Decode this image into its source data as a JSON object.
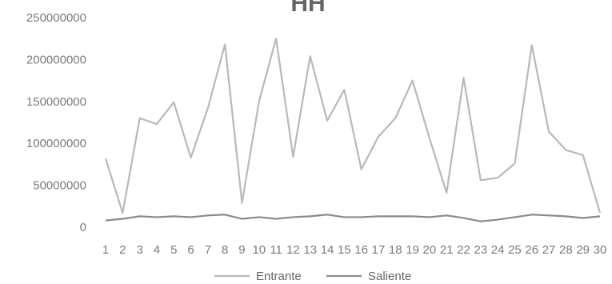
{
  "chart_data": {
    "type": "line",
    "title": "HH",
    "xlabel": "",
    "ylabel": "",
    "categories": [
      "1",
      "2",
      "3",
      "4",
      "5",
      "6",
      "7",
      "8",
      "9",
      "10",
      "11",
      "12",
      "13",
      "14",
      "15",
      "16",
      "17",
      "18",
      "19",
      "20",
      "21",
      "22",
      "23",
      "24",
      "25",
      "26",
      "27",
      "28",
      "29",
      "30"
    ],
    "yticks": [
      "0",
      "50000000",
      "100000000",
      "150000000",
      "200000000",
      "250000000"
    ],
    "ylim": [
      0,
      250000000
    ],
    "grid": false,
    "legend_position": "bottom",
    "series": [
      {
        "name": "Entrante",
        "color": "#b8b8b8",
        "values": [
          82000000,
          17000000,
          130000000,
          123000000,
          149000000,
          83000000,
          142000000,
          218000000,
          29000000,
          150000000,
          225000000,
          84000000,
          204000000,
          127000000,
          164000000,
          69000000,
          108000000,
          130000000,
          175000000,
          106000000,
          41000000,
          178000000,
          56000000,
          59000000,
          76000000,
          217000000,
          114000000,
          92000000,
          86000000,
          17000000
        ]
      },
      {
        "name": "Saliente",
        "color": "#8a8a8a",
        "values": [
          8000000,
          10000000,
          13000000,
          12000000,
          13000000,
          12000000,
          14000000,
          15000000,
          10000000,
          12000000,
          10000000,
          12000000,
          13000000,
          15000000,
          12000000,
          12000000,
          13000000,
          13000000,
          13000000,
          12000000,
          14000000,
          11000000,
          7000000,
          9000000,
          12000000,
          15000000,
          14000000,
          13000000,
          11000000,
          13000000
        ]
      }
    ]
  }
}
